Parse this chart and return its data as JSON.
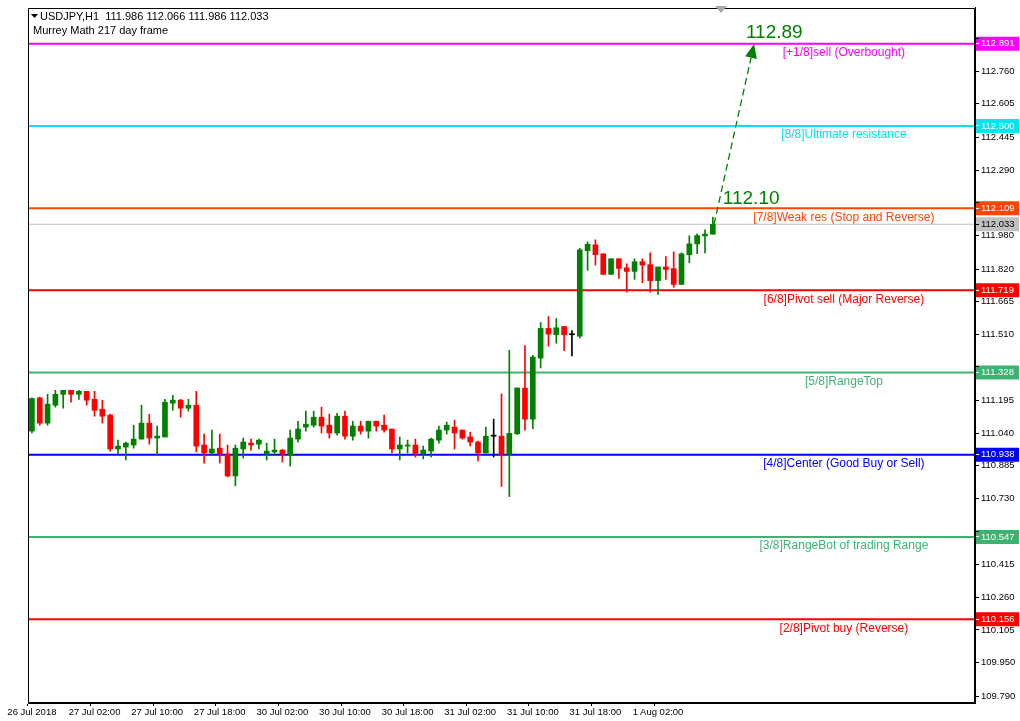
{
  "chart_data": {
    "type": "candlestick",
    "title": "USDJPY,H1  111.986 112.066 111.986 112.033",
    "subtitle": "Murrey Math 217 day frame",
    "categories": [
      "26 Jul 2018",
      null,
      null,
      null,
      null,
      null,
      null,
      null,
      "27 Jul 02:00",
      null,
      null,
      null,
      null,
      null,
      null,
      null,
      "27 Jul 10:00",
      null,
      null,
      null,
      null,
      null,
      null,
      null,
      "27 Jul 18:00",
      null,
      null,
      null,
      null,
      null,
      null,
      null,
      "30 Jul 02:00",
      null,
      null,
      null,
      null,
      null,
      null,
      null,
      "30 Jul 10:00",
      null,
      null,
      null,
      null,
      null,
      null,
      null,
      "30 Jul 18:00",
      null,
      null,
      null,
      null,
      null,
      null,
      null,
      "31 Jul 02:00",
      null,
      null,
      null,
      null,
      null,
      null,
      null,
      "31 Jul 10:00",
      null,
      null,
      null,
      null,
      null,
      null,
      null,
      "31 Jul 18:00",
      null,
      null,
      null,
      null,
      null,
      null,
      null,
      "1 Aug 02:00",
      null,
      null,
      null,
      null,
      null,
      null,
      null,
      null,
      null,
      null,
      null,
      null,
      null,
      null,
      null,
      null,
      null,
      null,
      null,
      null,
      null,
      null,
      null,
      null,
      null,
      null,
      null,
      null,
      null,
      null,
      null,
      null,
      null,
      null,
      null,
      null,
      null,
      null,
      null,
      null
    ],
    "ohlc": [
      [
        111.05,
        111.208,
        111.041,
        111.205
      ],
      [
        111.208,
        111.212,
        111.078,
        111.088
      ],
      [
        111.088,
        111.225,
        111.078,
        111.178
      ],
      [
        111.173,
        111.244,
        111.164,
        111.225
      ],
      [
        111.225,
        111.244,
        111.159,
        111.244
      ],
      [
        111.244,
        111.244,
        111.187,
        111.225
      ],
      [
        111.225,
        111.244,
        111.201,
        111.239
      ],
      [
        111.239,
        111.239,
        111.173,
        111.197
      ],
      [
        111.201,
        111.239,
        111.121,
        111.149
      ],
      [
        111.154,
        111.197,
        111.088,
        111.121
      ],
      [
        111.126,
        111.13,
        110.955,
        110.965
      ],
      [
        110.965,
        111.007,
        110.941,
        110.979
      ],
      [
        110.974,
        110.998,
        110.913,
        110.993
      ],
      [
        110.984,
        111.078,
        110.969,
        111.012
      ],
      [
        111.012,
        111.173,
        111.012,
        111.088
      ],
      [
        111.088,
        111.13,
        110.988,
        111.017
      ],
      [
        111.017,
        111.074,
        110.936,
        111.026
      ],
      [
        111.022,
        111.201,
        111.022,
        111.187
      ],
      [
        111.183,
        111.22,
        111.149,
        111.197
      ],
      [
        111.197,
        111.201,
        111.116,
        111.159
      ],
      [
        111.159,
        111.201,
        111.145,
        111.173
      ],
      [
        111.173,
        111.239,
        110.951,
        110.979
      ],
      [
        110.984,
        111.036,
        110.898,
        110.946
      ],
      [
        110.946,
        111.055,
        110.936,
        110.965
      ],
      [
        110.969,
        111.036,
        110.898,
        110.941
      ],
      [
        110.941,
        110.984,
        110.832,
        110.837
      ],
      [
        110.837,
        110.984,
        110.79,
        110.969
      ],
      [
        110.965,
        111.017,
        110.922,
        110.998
      ],
      [
        110.993,
        111.012,
        110.96,
        110.984
      ],
      [
        110.988,
        111.012,
        110.965,
        111.007
      ],
      [
        110.941,
        110.993,
        110.913,
        110.955
      ],
      [
        110.951,
        111.012,
        110.936,
        110.96
      ],
      [
        110.96,
        110.963,
        110.903,
        110.941
      ],
      [
        110.938,
        111.055,
        110.884,
        111.017
      ],
      [
        111.012,
        111.097,
        110.998,
        111.06
      ],
      [
        111.069,
        111.145,
        111.05,
        111.083
      ],
      [
        111.078,
        111.145,
        111.069,
        111.116
      ],
      [
        111.116,
        111.164,
        111.041,
        111.074
      ],
      [
        111.078,
        111.131,
        111.017,
        111.041
      ],
      [
        111.041,
        111.135,
        111.031,
        111.121
      ],
      [
        111.121,
        111.145,
        111.012,
        111.026
      ],
      [
        111.026,
        111.097,
        111.007,
        111.074
      ],
      [
        111.074,
        111.097,
        111.036,
        111.05
      ],
      [
        111.05,
        111.097,
        111.017,
        111.097
      ],
      [
        111.097,
        111.097,
        111.05,
        111.074
      ],
      [
        111.078,
        111.126,
        111.045,
        111.055
      ],
      [
        111.06,
        111.06,
        110.946,
        110.965
      ],
      [
        110.965,
        111.022,
        110.913,
        110.984
      ],
      [
        110.979,
        111.007,
        110.946,
        110.984
      ],
      [
        110.984,
        111.012,
        110.927,
        110.941
      ],
      [
        110.941,
        110.979,
        110.918,
        110.96
      ],
      [
        110.955,
        111.017,
        110.927,
        111.012
      ],
      [
        111.007,
        111.074,
        110.993,
        111.055
      ],
      [
        111.055,
        111.093,
        111.036,
        111.078
      ],
      [
        111.069,
        111.102,
        110.965,
        111.041
      ],
      [
        111.055,
        111.055,
        111.012,
        111.017
      ],
      [
        111.022,
        111.045,
        110.979,
        110.998
      ],
      [
        110.998,
        111.003,
        110.908,
        110.946
      ],
      [
        110.946,
        111.069,
        110.946,
        111.026
      ],
      [
        111.026,
        111.107,
        110.927,
        111.026
      ],
      [
        111.026,
        111.227,
        110.787,
        110.94
      ],
      [
        110.94,
        111.434,
        110.739,
        111.039
      ],
      [
        111.037,
        111.255,
        111.034,
        111.255
      ],
      [
        111.254,
        111.457,
        111.055,
        111.107
      ],
      [
        111.107,
        111.41,
        111.061,
        111.402
      ],
      [
        111.397,
        111.566,
        111.35,
        111.538
      ],
      [
        111.538,
        111.594,
        111.454,
        111.511
      ],
      [
        111.508,
        111.585,
        111.468,
        111.541
      ],
      [
        111.547,
        111.547,
        111.432,
        111.508
      ],
      [
        111.508,
        111.528,
        111.407,
        111.508
      ],
      [
        111.501,
        111.919,
        111.492,
        111.912
      ],
      [
        111.908,
        111.949,
        111.814,
        111.938
      ],
      [
        111.935,
        111.959,
        111.839,
        111.889
      ],
      [
        111.893,
        111.893,
        111.795,
        111.795
      ],
      [
        111.795,
        111.869,
        111.795,
        111.869
      ],
      [
        111.869,
        111.869,
        111.776,
        111.823
      ],
      [
        111.826,
        111.845,
        111.71,
        111.809
      ],
      [
        111.809,
        111.869,
        111.771,
        111.855
      ],
      [
        111.855,
        111.869,
        111.755,
        111.839
      ],
      [
        111.841,
        111.897,
        111.71,
        111.765
      ],
      [
        111.765,
        111.83,
        111.7,
        111.83
      ],
      [
        111.83,
        111.879,
        111.771,
        111.818
      ],
      [
        111.822,
        111.902,
        111.733,
        111.747
      ],
      [
        111.747,
        111.897,
        111.747,
        111.893
      ],
      [
        111.888,
        111.978,
        111.85,
        111.94
      ],
      [
        111.94,
        111.987,
        111.893,
        111.979
      ],
      [
        111.978,
        112.006,
        111.897,
        111.986
      ],
      [
        111.986,
        112.066,
        111.986,
        112.033
      ],
      null,
      null,
      null,
      null,
      null,
      null,
      null,
      null,
      null,
      null,
      null,
      null,
      null,
      null,
      null,
      null,
      null,
      null,
      null,
      null,
      null,
      null,
      null,
      null,
      null,
      null,
      null,
      null,
      null,
      null,
      null,
      null,
      null
    ],
    "colors": [
      "#008000",
      "#ff0000",
      "#008000",
      "#008000",
      "#008000",
      "#ff0000",
      "#008000",
      "#ff0000",
      "#ff0000",
      "#ff0000",
      "#ff0000",
      "#008000",
      "#008000",
      "#008000",
      "#008000",
      "#ff0000",
      "#008000",
      "#008000",
      "#008000",
      "#ff0000",
      "#008000",
      "#ff0000",
      "#ff0000",
      "#008000",
      "#ff0000",
      "#ff0000",
      "#008000",
      "#008000",
      "#ff0000",
      "#008000",
      "#008000",
      "#008000",
      "#ff0000",
      "#008000",
      "#008000",
      "#008000",
      "#008000",
      "#ff0000",
      "#ff0000",
      "#008000",
      "#ff0000",
      "#008000",
      "#ff0000",
      "#008000",
      "#ff0000",
      "#ff0000",
      "#ff0000",
      "#008000",
      "#008000",
      "#ff0000",
      "#008000",
      "#008000",
      "#008000",
      "#008000",
      "#ff0000",
      "#ff0000",
      "#ff0000",
      "#ff0000",
      "#008000",
      "#000000",
      "#ff0000",
      "#008000",
      "#008000",
      "#ff0000",
      "#008000",
      "#008000",
      "#ff0000",
      "#008000",
      "#ff0000",
      "#000000",
      "#008000",
      "#008000",
      "#ff0000",
      "#ff0000",
      "#008000",
      "#ff0000",
      "#ff0000",
      "#008000",
      "#ff0000",
      "#ff0000",
      "#008000",
      "#ff0000",
      "#ff0000",
      "#008000",
      "#008000",
      "#008000",
      "#008000",
      "#008000",
      null,
      null,
      null,
      null,
      null,
      null,
      null,
      null,
      null,
      null,
      null,
      null,
      null,
      null,
      null,
      null,
      null,
      null,
      null,
      null,
      null,
      null,
      null,
      null,
      null,
      null,
      null,
      null,
      null,
      null,
      null,
      null,
      null
    ],
    "ylim": [
      109.758,
      113.062
    ],
    "yticks": [
      {
        "value": 112.915,
        "label": null
      },
      112.891,
      {
        "value": 112.76,
        "label": "112.760"
      },
      112.605,
      {
        "value": 112.5,
        "label": "112.500"
      },
      112.445,
      {
        "value": 112.29,
        "label": "112.290"
      },
      {
        "value": 112.135,
        "label": null
      },
      112.109,
      112.033,
      {
        "value": 111.98,
        "label": "111.980"
      },
      {
        "value": 111.82,
        "label": "111.820"
      },
      111.719,
      111.665,
      {
        "value": 111.51,
        "label": "111.510"
      },
      {
        "value": 111.355,
        "label": null
      },
      111.328,
      111.195,
      {
        "value": 111.04,
        "label": "111.040"
      },
      110.938,
      110.885,
      {
        "value": 110.73,
        "label": "110.730"
      },
      {
        "value": 110.575,
        "label": null
      },
      110.547,
      110.415,
      {
        "value": 110.26,
        "label": "110.260"
      },
      110.156,
      110.105,
      {
        "value": 109.95,
        "label": "109.950"
      },
      {
        "value": 109.79,
        "label": "109.790"
      }
    ],
    "ref_lines": [
      {
        "axis": "y",
        "value": 112.891,
        "label": "[+1/8]sell (Overbought)",
        "color": "#ff00ff"
      },
      {
        "axis": "y",
        "value": 112.5,
        "label": "[8/8]Ultimate resistance",
        "color": "#00e5ee"
      },
      {
        "axis": "y",
        "value": 112.109,
        "label": "[7/8]Weak res (Stop and Reverse)",
        "color": "#ff4500"
      },
      {
        "axis": "y",
        "value": 112.033,
        "color": "#c0c0c0"
      },
      {
        "axis": "y",
        "value": 111.719,
        "label": "[6/8]Pivot sell (Major Reverse)",
        "color": "#ff0000"
      },
      {
        "axis": "y",
        "value": 111.328,
        "label": "[5/8]RangeTop",
        "color": "#3cb371"
      },
      {
        "axis": "y",
        "value": 110.938,
        "label": "[4/8]Center (Good Buy or Sell)",
        "color": "#0000ff"
      },
      {
        "axis": "y",
        "value": 110.547,
        "label": "[3/8]RangeBot of trading Range",
        "color": "#3cb371"
      },
      {
        "axis": "y",
        "value": 110.156,
        "label": "[2/8]Pivot buy (Reverse)",
        "color": "#ff0000"
      }
    ],
    "annotations": [
      {
        "text": "112.89",
        "y": 112.89
      },
      {
        "text": "112.10",
        "y": 112.1
      }
    ]
  }
}
